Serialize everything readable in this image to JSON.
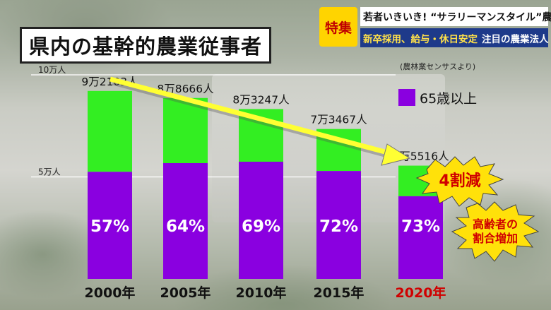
{
  "title": "県内の基幹的農業従事者",
  "banner": {
    "tag": "特集",
    "line1": "若者いきいき! “サラリーマンスタイル”農業",
    "line2_yellow": "新卒採用、給与・休日安定",
    "line2_white": "注目の農業法人"
  },
  "source": "(農林業センサスより)",
  "legend_label": "65歳以上",
  "burst_decrease": "4割減",
  "burst_elderly": [
    "高齢者の",
    "割合増加"
  ],
  "colors": {
    "total": "#33ee22",
    "elderly": "#8a00e0",
    "arrow": "#ffff33",
    "highlight_year": "#d00000"
  },
  "chart_data": {
    "type": "bar",
    "stacked": true,
    "title": "県内の基幹的農業従事者",
    "categories": [
      "2000年",
      "2005年",
      "2010年",
      "2015年",
      "2020年"
    ],
    "totals": [
      92103,
      88666,
      83247,
      73467,
      55516
    ],
    "total_labels": [
      "9万2103人",
      "8万8666人",
      "8万3247人",
      "7万3467人",
      "5万5516人"
    ],
    "elderly_share_pct": [
      57,
      64,
      69,
      72,
      73
    ],
    "elderly_share_labels": [
      "57%",
      "64%",
      "69%",
      "72%",
      "73%"
    ],
    "y_ticks": [
      {
        "value": 100000,
        "label": "10万人"
      },
      {
        "value": 50000,
        "label": "5万人"
      }
    ],
    "ylim": [
      0,
      100000
    ],
    "highlight_category": "2020年",
    "series": [
      {
        "name": "65歳以上",
        "values": [
          52499,
          56746,
          57440,
          52896,
          40527
        ]
      },
      {
        "values": [
          39604,
          31920,
          25807,
          20571,
          14989
        ]
      }
    ]
  }
}
